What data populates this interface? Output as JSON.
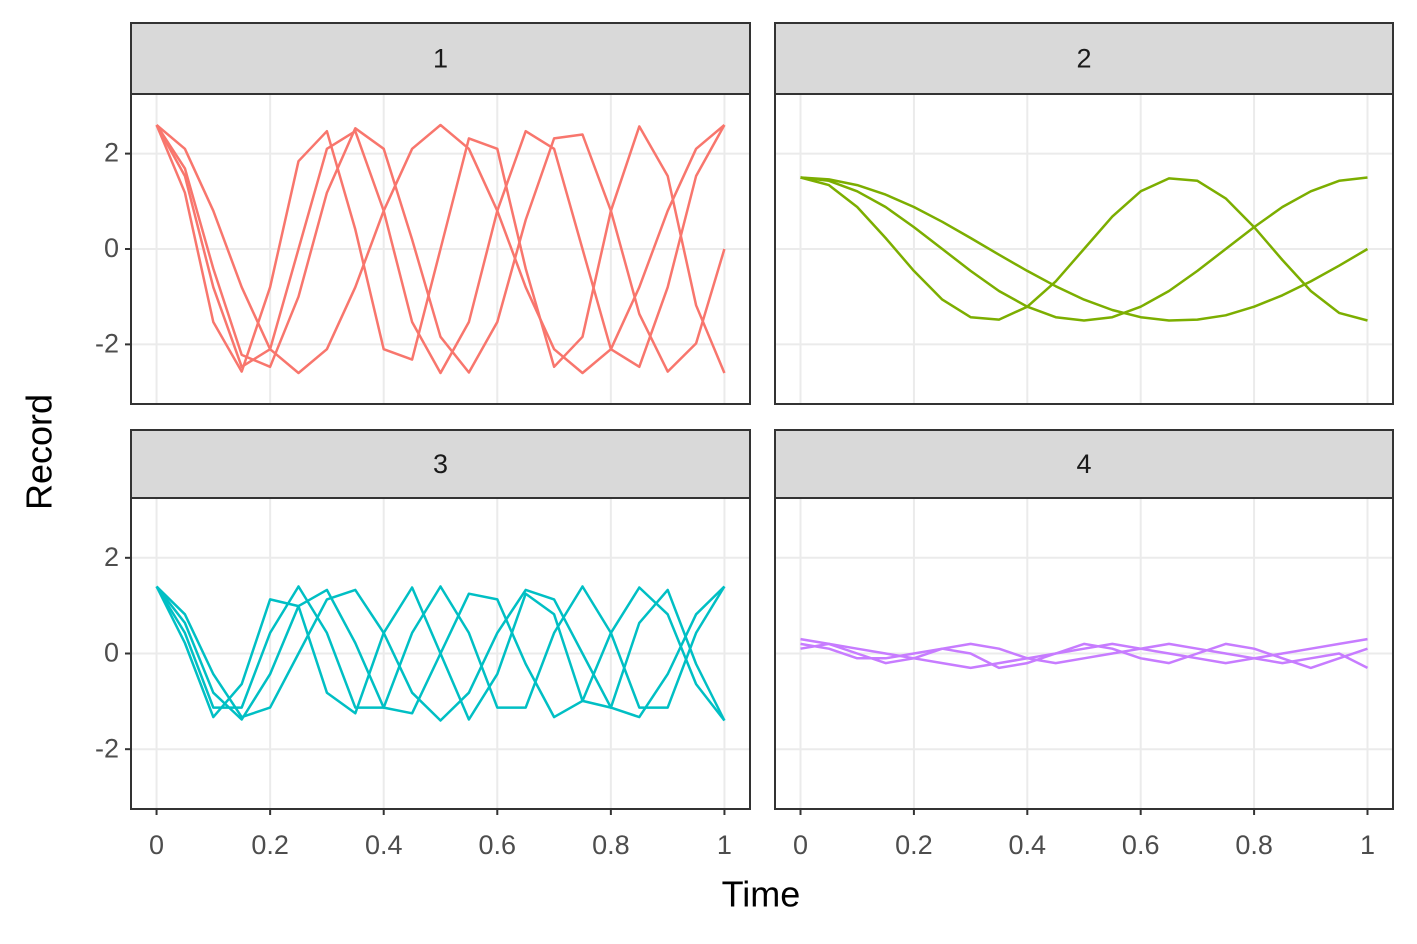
{
  "chart_data": {
    "type": "line",
    "xlabel": "Time",
    "ylabel": "Record",
    "x": [
      0,
      0.05,
      0.1,
      0.15,
      0.2,
      0.25,
      0.3,
      0.35,
      0.4,
      0.45,
      0.5,
      0.55,
      0.6,
      0.65,
      0.7,
      0.75,
      0.8,
      0.85,
      0.9,
      0.95,
      1
    ],
    "xlim": [
      -0.045,
      1.045
    ],
    "xticks": [
      0,
      0.2,
      0.4,
      0.6,
      0.8,
      1
    ],
    "ylim": [
      -3.25,
      3.25
    ],
    "yticks": [
      -2,
      0,
      2
    ],
    "grid": true,
    "panels": [
      {
        "title": "1",
        "color": "#F8766D",
        "series": [
          {
            "values": [
              2.6,
              1.53,
              -0.8,
              -2.47,
              -2.1,
              0,
              2.1,
              2.47,
              0.8,
              -1.53,
              -2.6,
              -1.53,
              0.8,
              2.47,
              2.1,
              0,
              -2.1,
              -2.47,
              -0.8,
              1.53,
              2.6
            ]
          },
          {
            "values": [
              2.6,
              2.1,
              0.8,
              -0.8,
              -2.1,
              -2.6,
              -2.1,
              -0.8,
              0.8,
              2.1,
              2.6,
              2.1,
              0.8,
              -0.8,
              -2.1,
              -2.6,
              -2.1,
              -0.8,
              0.8,
              2.1,
              2.6
            ]
          },
          {
            "values": [
              2.6,
              1.18,
              -1.53,
              -2.57,
              -0.8,
              1.84,
              2.47,
              0.41,
              -2.1,
              -2.32,
              0,
              2.32,
              2.1,
              -0.41,
              -2.47,
              -1.84,
              0.8,
              2.57,
              1.53,
              -1.18,
              -2.6
            ]
          },
          {
            "values": [
              2.6,
              1.69,
              -0.41,
              -2.22,
              -2.47,
              -1,
              1.18,
              2.53,
              2.1,
              0.2,
              -1.84,
              -2.59,
              -1.53,
              0.61,
              2.32,
              2.4,
              0.8,
              -1.36,
              -2.57,
              -1.98,
              0
            ]
          }
        ]
      },
      {
        "title": "2",
        "color": "#7CAE00",
        "series": [
          {
            "values": [
              1.5,
              1.34,
              0.88,
              0.23,
              -0.46,
              -1.06,
              -1.43,
              -1.48,
              -1.21,
              -0.68,
              0,
              0.68,
              1.21,
              1.48,
              1.43,
              1.06,
              0.46,
              -0.23,
              -0.88,
              -1.34,
              -1.5
            ]
          },
          {
            "values": [
              1.5,
              1.43,
              1.21,
              0.88,
              0.46,
              0,
              -0.46,
              -0.88,
              -1.21,
              -1.43,
              -1.5,
              -1.43,
              -1.21,
              -0.88,
              -0.46,
              0,
              0.46,
              0.88,
              1.21,
              1.43,
              1.5
            ]
          },
          {
            "values": [
              1.5,
              1.46,
              1.34,
              1.14,
              0.88,
              0.57,
              0.23,
              -0.12,
              -0.46,
              -0.78,
              -1.06,
              -1.28,
              -1.43,
              -1.5,
              -1.48,
              -1.39,
              -1.21,
              -0.97,
              -0.68,
              -0.35,
              0
            ]
          }
        ]
      },
      {
        "title": "3",
        "color": "#00BFC4",
        "series": [
          {
            "values": [
              1.4,
              0.43,
              -1.13,
              -1.13,
              0.43,
              1.4,
              0.43,
              -1.13,
              -1.13,
              0.43,
              1.4,
              0.43,
              -1.13,
              -1.13,
              0.43,
              1.4,
              0.43,
              -1.13,
              -1.13,
              0.43,
              1.4
            ]
          },
          {
            "values": [
              1.4,
              0.64,
              -0.82,
              -1.38,
              -0.43,
              0.99,
              1.33,
              0.22,
              -1.13,
              -1.25,
              0,
              1.25,
              1.13,
              -0.22,
              -1.33,
              -0.99,
              0.43,
              1.38,
              0.82,
              -0.64,
              -1.4
            ]
          },
          {
            "values": [
              1.4,
              0.82,
              -0.43,
              -1.33,
              -1.13,
              0,
              1.13,
              1.33,
              0.43,
              -0.82,
              -1.4,
              -0.82,
              0.43,
              1.33,
              1.13,
              0,
              -1.13,
              -1.33,
              -0.43,
              0.82,
              1.4
            ]
          },
          {
            "values": [
              1.4,
              0.22,
              -1.33,
              -0.64,
              1.13,
              0.99,
              -0.82,
              -1.25,
              0.43,
              1.38,
              0,
              -1.38,
              -0.43,
              1.25,
              0.82,
              -0.99,
              -1.13,
              0.64,
              1.33,
              -0.22,
              -1.4
            ]
          }
        ]
      },
      {
        "title": "4",
        "color": "#C77CFF",
        "series": [
          {
            "values": [
              0.3,
              0.2,
              0.1,
              0,
              -0.1,
              -0.2,
              -0.3,
              -0.2,
              -0.1,
              0,
              0.1,
              0.2,
              0.1,
              0,
              -0.1,
              -0.2,
              -0.1,
              0,
              0.1,
              0.2,
              0.3
            ]
          },
          {
            "values": [
              0.2,
              0.1,
              -0.1,
              -0.1,
              0,
              0.1,
              0.2,
              0.1,
              -0.1,
              -0.2,
              -0.1,
              0,
              0.1,
              0.2,
              0.1,
              0,
              -0.1,
              -0.2,
              -0.1,
              0,
              -0.3
            ]
          },
          {
            "values": [
              0.1,
              0.2,
              0,
              -0.2,
              -0.1,
              0.1,
              0,
              -0.3,
              -0.2,
              0,
              0.2,
              0.1,
              -0.1,
              -0.2,
              0,
              0.2,
              0.1,
              -0.1,
              -0.3,
              -0.1,
              0.1
            ]
          }
        ]
      }
    ]
  }
}
